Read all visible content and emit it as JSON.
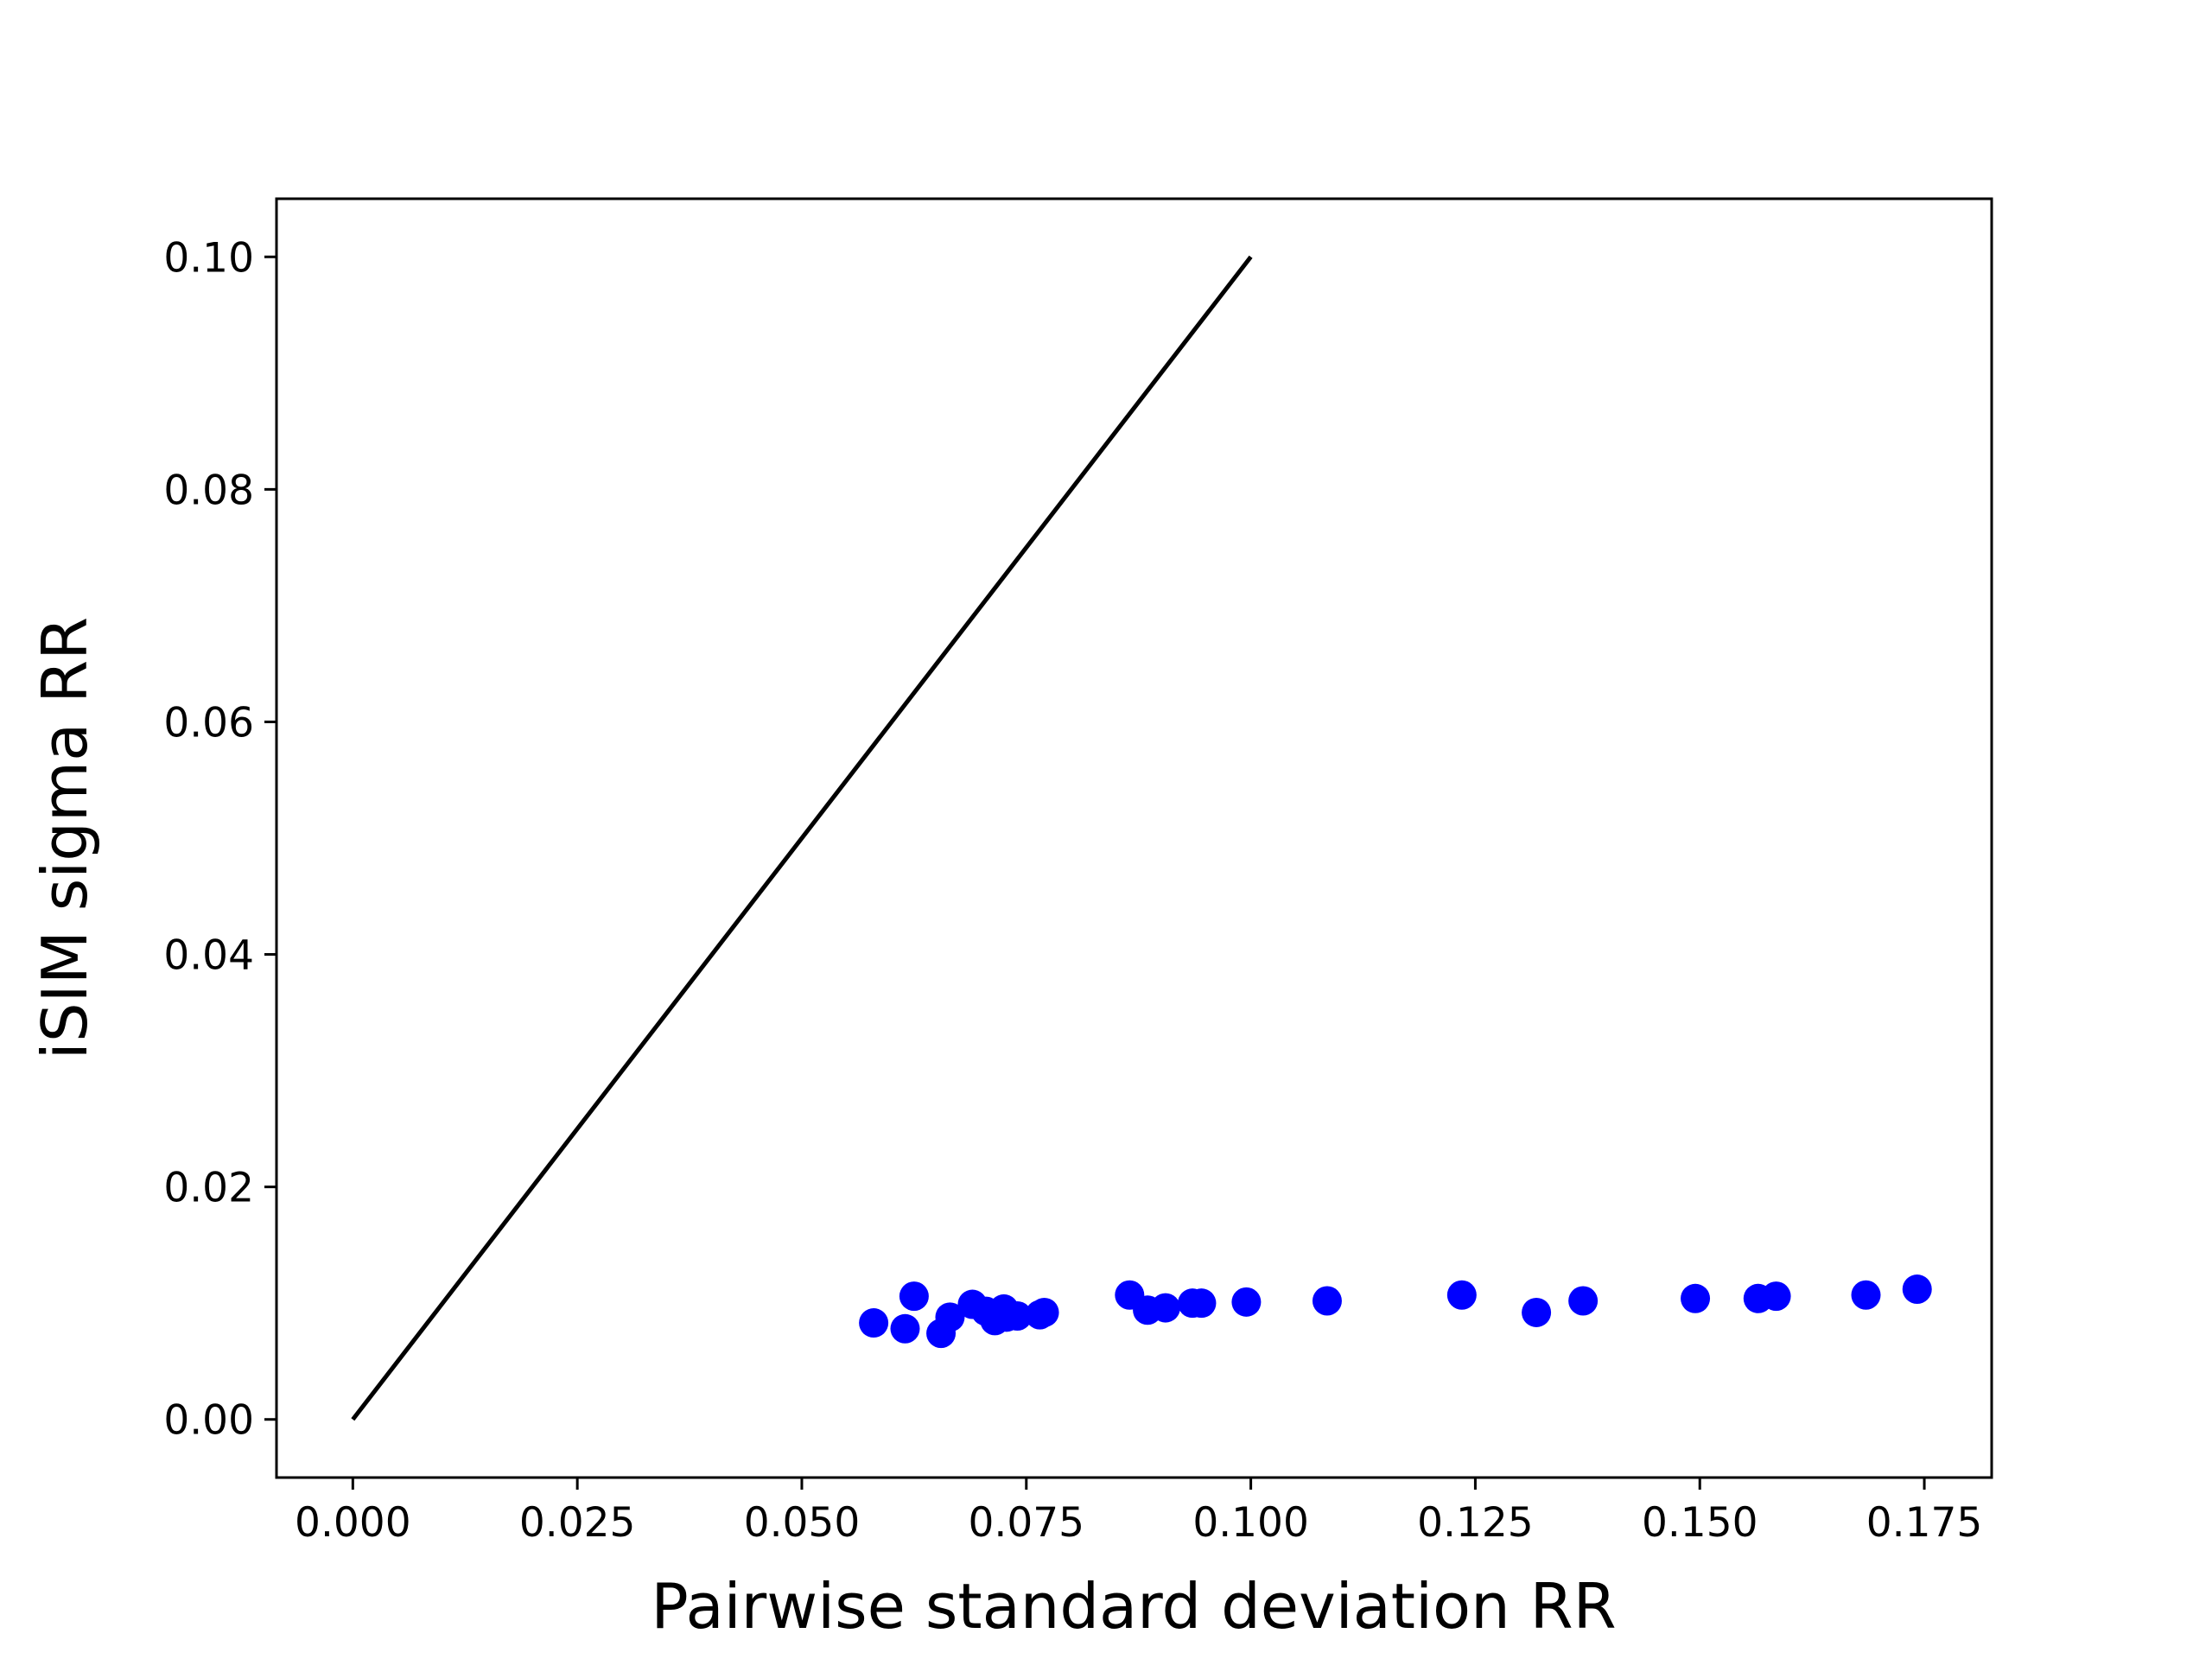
{
  "chart_data": {
    "type": "scatter",
    "title": "",
    "xlabel": "Pairwise standard deviation RR",
    "ylabel": "iSIM sigma RR",
    "xlim": [
      -0.0085,
      0.1825
    ],
    "ylim": [
      -0.005,
      0.105
    ],
    "xticks": [
      0.0,
      0.025,
      0.05,
      0.075,
      0.1,
      0.125,
      0.15,
      0.175
    ],
    "xtick_labels": [
      "0.000",
      "0.025",
      "0.050",
      "0.075",
      "0.100",
      "0.125",
      "0.150",
      "0.175"
    ],
    "yticks": [
      0.0,
      0.02,
      0.04,
      0.06,
      0.08,
      0.1
    ],
    "ytick_labels": [
      "0.00",
      "0.02",
      "0.04",
      "0.06",
      "0.08",
      "0.10"
    ],
    "grid": false,
    "series": [
      {
        "kind": "line",
        "color": "#000000",
        "points": [
          [
            0.0,
            0.0
          ],
          [
            0.1,
            0.1
          ]
        ]
      },
      {
        "kind": "scatter",
        "color": "#0000ff",
        "points": [
          [
            0.058,
            0.0083
          ],
          [
            0.0615,
            0.0078
          ],
          [
            0.0625,
            0.0106
          ],
          [
            0.0655,
            0.0074
          ],
          [
            0.0665,
            0.0088
          ],
          [
            0.069,
            0.0099
          ],
          [
            0.0705,
            0.0093
          ],
          [
            0.0715,
            0.0085
          ],
          [
            0.0725,
            0.0095
          ],
          [
            0.0728,
            0.0088
          ],
          [
            0.074,
            0.0089
          ],
          [
            0.0765,
            0.009
          ],
          [
            0.077,
            0.0092
          ],
          [
            0.0865,
            0.0107
          ],
          [
            0.0885,
            0.0094
          ],
          [
            0.0905,
            0.0096
          ],
          [
            0.0935,
            0.01
          ],
          [
            0.0945,
            0.01
          ],
          [
            0.0995,
            0.0101
          ],
          [
            0.1085,
            0.0102
          ],
          [
            0.1235,
            0.0107
          ],
          [
            0.1318,
            0.0092
          ],
          [
            0.137,
            0.0102
          ],
          [
            0.1495,
            0.0104
          ],
          [
            0.1565,
            0.0104
          ],
          [
            0.1585,
            0.0106
          ],
          [
            0.1685,
            0.0107
          ],
          [
            0.1742,
            0.0112
          ]
        ]
      }
    ]
  }
}
